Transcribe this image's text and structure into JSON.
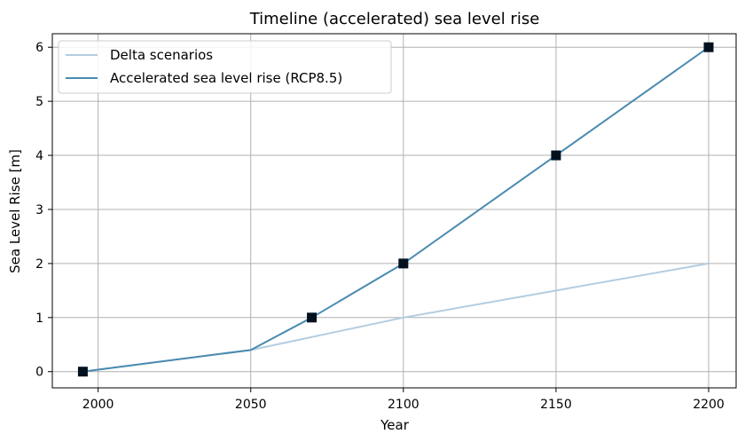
{
  "chart_data": {
    "type": "line",
    "title": "Timeline (accelerated) sea level rise",
    "xlabel": "Year",
    "ylabel": "Sea Level Rise [m]",
    "xlim": [
      1985,
      2209
    ],
    "ylim": [
      -0.3,
      6.25
    ],
    "xticks": [
      2000,
      2050,
      2100,
      2150,
      2200
    ],
    "yticks": [
      0,
      1,
      2,
      3,
      4,
      5,
      6
    ],
    "grid": true,
    "legend_position": "upper-left",
    "series": [
      {
        "name": "Delta scenarios",
        "color": "#b3cde0",
        "x": [
          1995,
          2050,
          2100,
          2150,
          2200
        ],
        "y": [
          0,
          0.4,
          1,
          1.5,
          2
        ],
        "markers": false
      },
      {
        "name": "Accelerated sea level rise (RCP8.5)",
        "color": "#4a8bb0",
        "x": [
          1995,
          2050,
          2070,
          2100,
          2150,
          2200
        ],
        "y": [
          0,
          0.4,
          1,
          2,
          4,
          6
        ],
        "markers": false
      }
    ],
    "markers": {
      "color": "#03111f",
      "x": [
        1995,
        2070,
        2100,
        2150,
        2200
      ],
      "y": [
        0,
        1,
        2,
        4,
        6
      ]
    }
  }
}
